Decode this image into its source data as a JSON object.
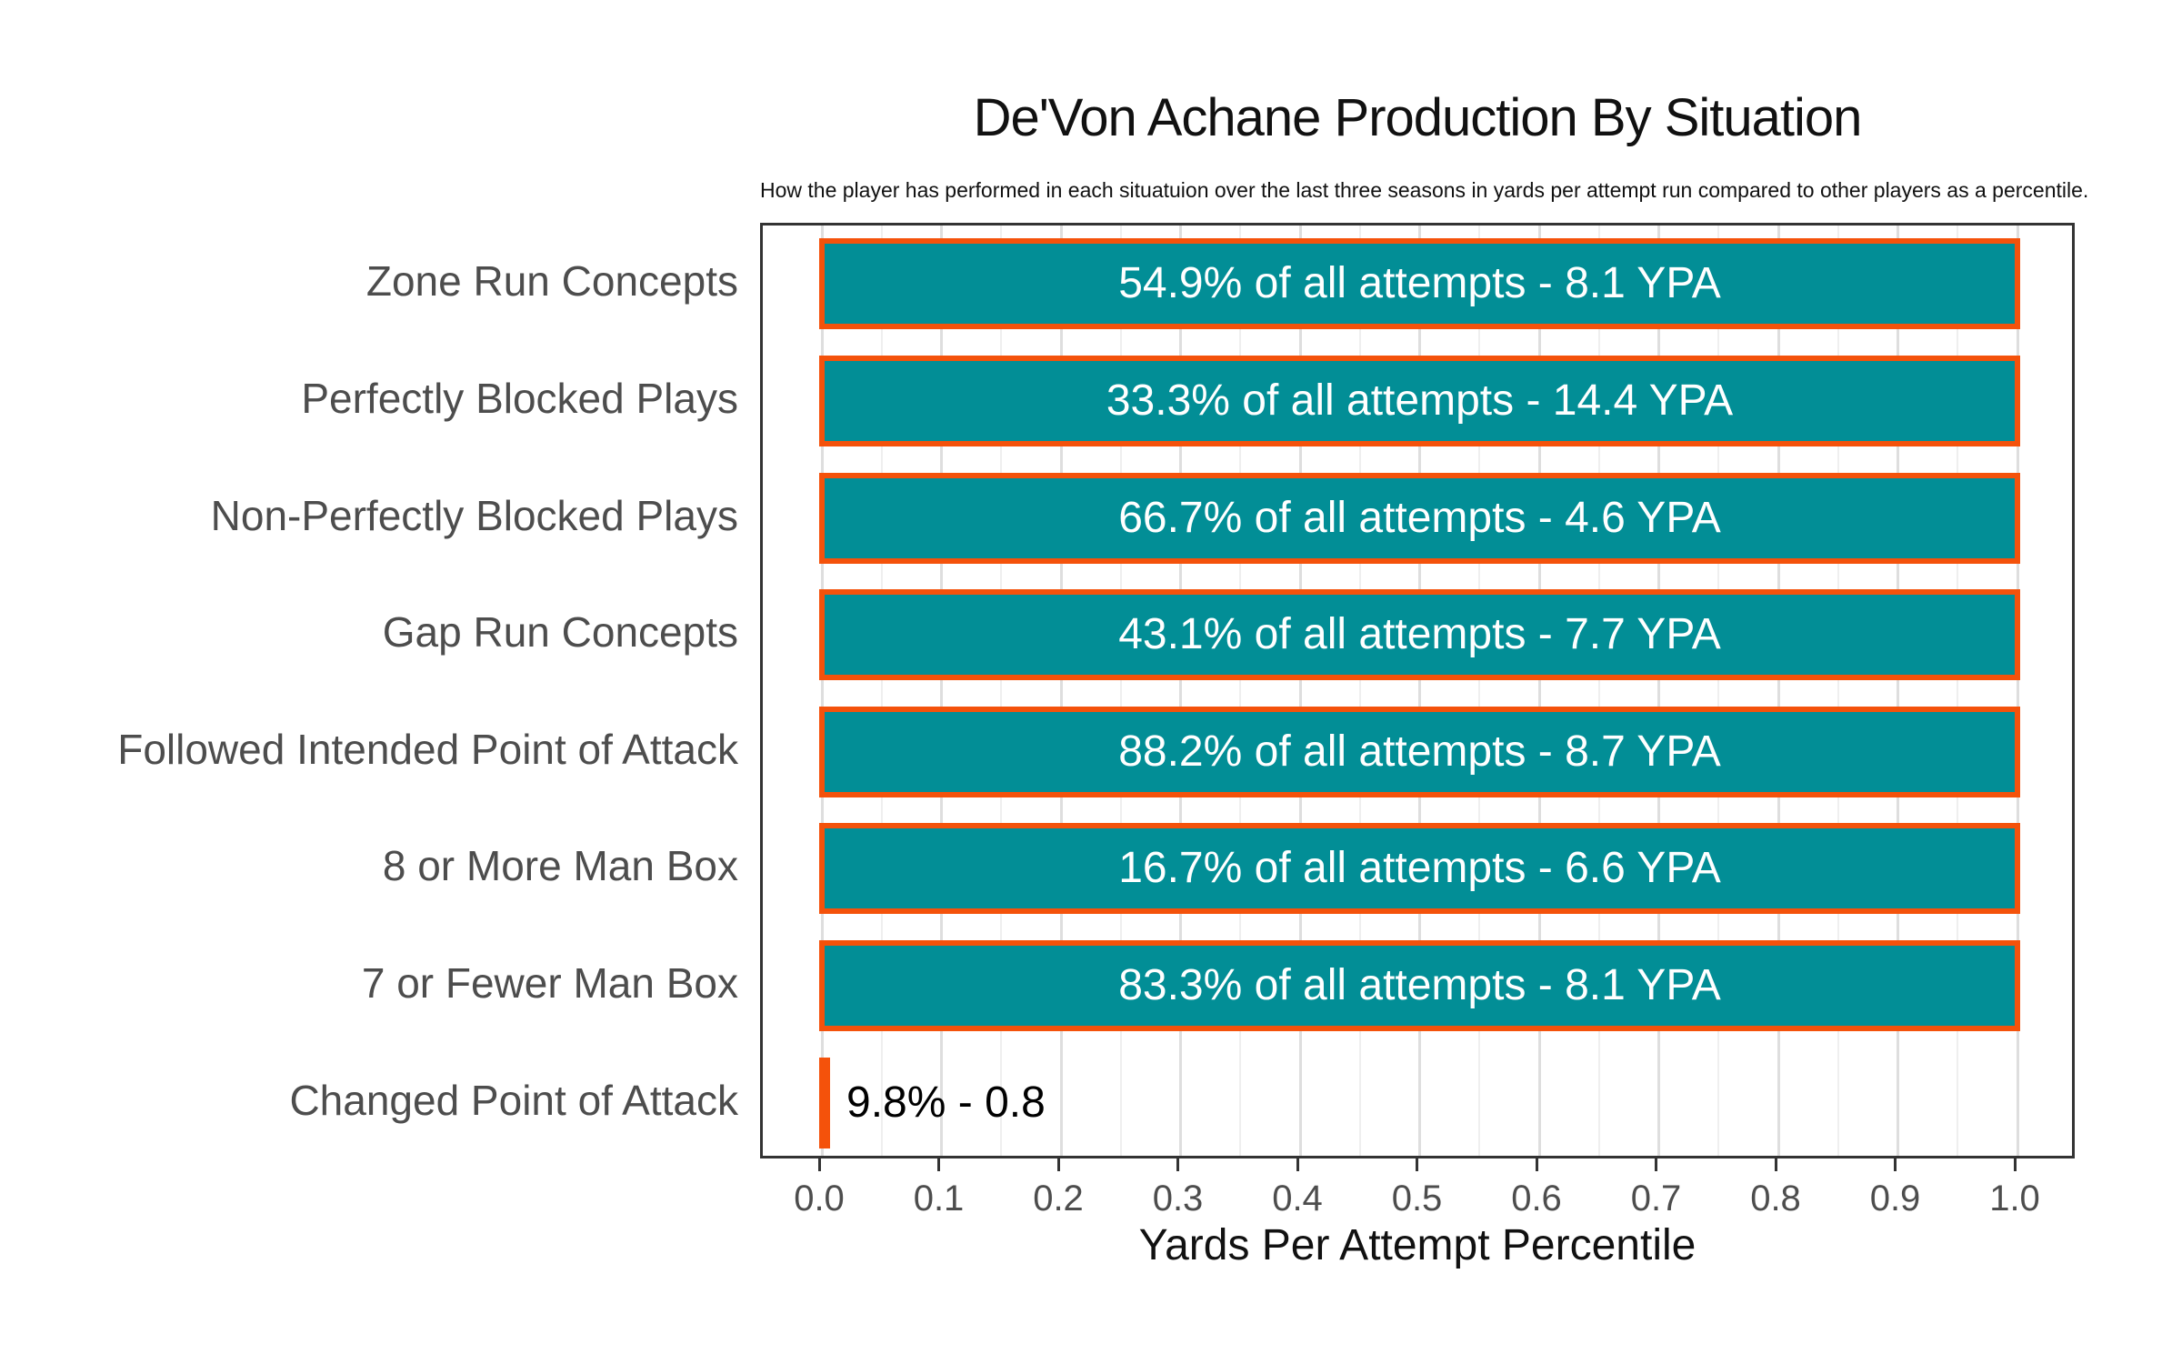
{
  "title": "De'Von Achane Production By Situation",
  "subtitle": "How the player has performed in each situatuion over the last three seasons in yards per attempt run compared to other players as a percentile.",
  "x_axis": {
    "label": "Yards Per Attempt Percentile",
    "ticks": [
      "0.0",
      "0.1",
      "0.2",
      "0.3",
      "0.4",
      "0.5",
      "0.6",
      "0.7",
      "0.8",
      "0.9",
      "1.0"
    ]
  },
  "colors": {
    "bar_fill": "#028e96",
    "bar_border": "#f4520b",
    "bar_text": "#ffffff",
    "outside_text": "#000000",
    "category_text": "#4d4d4d",
    "panel_border": "#333333",
    "grid_major": "#dedede",
    "grid_minor": "#efefef",
    "background": "#ffffff"
  },
  "chart_data": {
    "type": "bar",
    "orientation": "horizontal",
    "title": "De'Von Achane Production By Situation",
    "subtitle": "How the player has performed in each situatuion over the last three seasons in yards per attempt run compared to other players as a percentile.",
    "xlabel": "Yards Per Attempt Percentile",
    "ylabel": "",
    "xlim": [
      0.0,
      1.0
    ],
    "x_major_ticks": [
      0.0,
      0.1,
      0.2,
      0.3,
      0.4,
      0.5,
      0.6,
      0.7,
      0.8,
      0.9,
      1.0
    ],
    "x_minor_ticks": [
      0.05,
      0.15,
      0.25,
      0.35,
      0.45,
      0.55,
      0.65,
      0.75,
      0.85,
      0.95
    ],
    "grid": "vertical major and minor gridlines on white panel",
    "legend": "none",
    "categories": [
      "Zone Run Concepts",
      "Perfectly Blocked Plays",
      "Non-Perfectly Blocked Plays",
      "Gap Run Concepts",
      "Followed Intended Point of Attack",
      "8 or More Man Box",
      "7 or Fewer Man Box",
      "Changed Point of Attack"
    ],
    "values": [
      1.0,
      1.0,
      1.0,
      1.0,
      1.0,
      1.0,
      1.0,
      0.0
    ],
    "bar_labels": [
      "54.9% of all attempts - 8.1 YPA",
      "33.3% of all attempts - 14.4 YPA",
      "66.7% of all attempts - 4.6 YPA",
      "43.1% of all attempts - 7.7 YPA",
      "88.2% of all attempts - 8.7 YPA",
      "16.7% of all attempts - 6.6 YPA",
      "83.3% of all attempts - 8.1 YPA",
      "9.8% - 0.8"
    ],
    "rows": [
      {
        "category": "Zone Run Concepts",
        "percentile": 1.0,
        "attempts_pct": 54.9,
        "ypa": 8.1,
        "label": "54.9% of all attempts - 8.1 YPA",
        "label_position": "inside"
      },
      {
        "category": "Perfectly Blocked Plays",
        "percentile": 1.0,
        "attempts_pct": 33.3,
        "ypa": 14.4,
        "label": "33.3% of all attempts - 14.4 YPA",
        "label_position": "inside"
      },
      {
        "category": "Non-Perfectly Blocked Plays",
        "percentile": 1.0,
        "attempts_pct": 66.7,
        "ypa": 4.6,
        "label": "66.7% of all attempts - 4.6 YPA",
        "label_position": "inside"
      },
      {
        "category": "Gap Run Concepts",
        "percentile": 1.0,
        "attempts_pct": 43.1,
        "ypa": 7.7,
        "label": "43.1% of all attempts - 7.7 YPA",
        "label_position": "inside"
      },
      {
        "category": "Followed Intended Point of Attack",
        "percentile": 1.0,
        "attempts_pct": 88.2,
        "ypa": 8.7,
        "label": "88.2% of all attempts - 8.7 YPA",
        "label_position": "inside"
      },
      {
        "category": "8 or More Man Box",
        "percentile": 1.0,
        "attempts_pct": 16.7,
        "ypa": 6.6,
        "label": "16.7% of all attempts - 6.6 YPA",
        "label_position": "inside"
      },
      {
        "category": "7 or Fewer Man Box",
        "percentile": 1.0,
        "attempts_pct": 83.3,
        "ypa": 8.1,
        "label": "83.3% of all attempts - 8.1 YPA",
        "label_position": "inside"
      },
      {
        "category": "Changed Point of Attack",
        "percentile": 0.0,
        "attempts_pct": 9.8,
        "ypa": 0.8,
        "label": "9.8% - 0.8",
        "label_position": "outside"
      }
    ]
  }
}
